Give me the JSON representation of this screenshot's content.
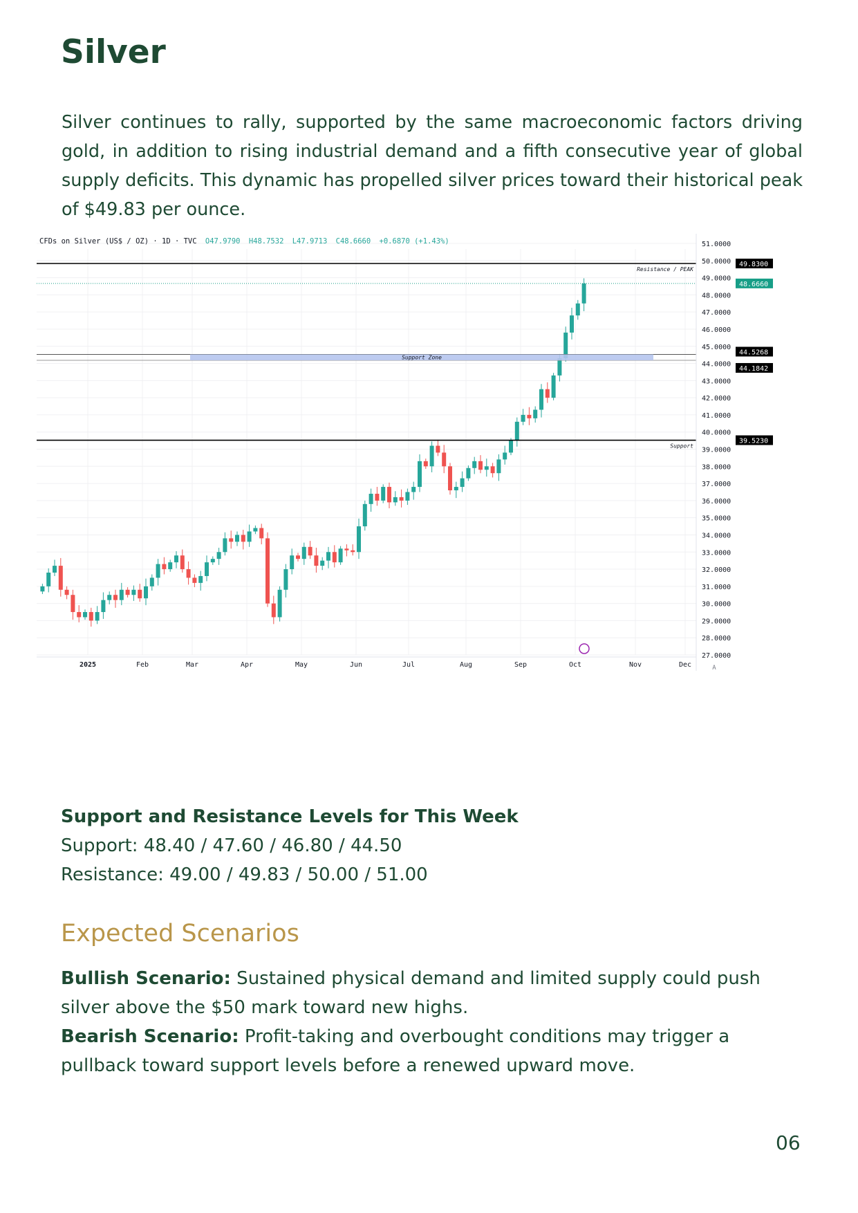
{
  "title": "Silver",
  "intro": "Silver continues to rally, supported by the same macroeconomic factors driving gold, in addition to rising industrial demand and a fifth consecutive year of global supply deficits. This dynamic has propelled silver prices toward their historical peak of $49.83 per ounce.",
  "chart_data": {
    "type": "candlestick",
    "header": {
      "symbol": "CFDs on Silver (US$ / OZ) · 1D · TVC",
      "open": "O47.9790",
      "high": "H48.7532",
      "low": "L47.9713",
      "close": "C48.6660",
      "change": "+0.6870 (+1.43%)"
    },
    "ylim": [
      27,
      51
    ],
    "y_ticks": [
      "51.0000",
      "50.0000",
      "49.0000",
      "48.0000",
      "47.0000",
      "46.0000",
      "45.0000",
      "44.0000",
      "43.0000",
      "42.0000",
      "41.0000",
      "40.0000",
      "39.0000",
      "38.0000",
      "37.0000",
      "36.0000",
      "35.0000",
      "34.0000",
      "33.0000",
      "32.0000",
      "31.0000",
      "30.0000",
      "29.0000",
      "28.0000",
      "27.0000"
    ],
    "x_ticks": [
      "2025",
      "Feb",
      "Mar",
      "Apr",
      "May",
      "Jun",
      "Jul",
      "Aug",
      "Sep",
      "Oct",
      "Nov",
      "Dec"
    ],
    "closes": [
      31.0,
      31.8,
      32.2,
      30.8,
      30.5,
      29.5,
      29.2,
      29.5,
      29.0,
      29.5,
      30.2,
      30.5,
      30.2,
      30.8,
      30.5,
      30.8,
      30.3,
      31.0,
      31.5,
      32.3,
      32.0,
      32.4,
      32.8,
      32.0,
      31.5,
      31.2,
      31.6,
      32.4,
      32.6,
      33.0,
      33.8,
      33.6,
      34.0,
      33.6,
      34.2,
      34.4,
      33.8,
      30.0,
      29.2,
      30.8,
      32.0,
      32.8,
      32.6,
      33.3,
      32.8,
      32.2,
      32.5,
      33.0,
      32.4,
      33.2,
      33.1,
      33.0,
      34.5,
      35.8,
      36.4,
      36.0,
      36.8,
      35.9,
      36.2,
      36.0,
      36.5,
      36.8,
      38.3,
      38.0,
      39.2,
      38.8,
      38.0,
      36.6,
      36.8,
      37.3,
      37.9,
      38.3,
      37.8,
      38.0,
      37.6,
      38.4,
      38.8,
      39.5,
      40.6,
      41.0,
      40.8,
      41.3,
      42.5,
      42.0,
      43.3,
      44.3,
      45.8,
      46.8,
      47.5,
      48.666
    ],
    "lines": [
      {
        "label": "Resistance / PEAK",
        "value": 49.83,
        "tag": "49.8300"
      },
      {
        "label": "Support",
        "value": 39.523,
        "tag": "39.5230"
      }
    ],
    "zone": {
      "label": "Support Zone",
      "top": 44.5268,
      "bottom": 44.1842,
      "tag_top": "44.5268",
      "tag_bottom": "44.1842"
    },
    "last_price": {
      "value": 48.666,
      "tag": "48.6660"
    },
    "colors": {
      "up": "#26a69a",
      "down": "#ef5350",
      "zone": "#b6c5ee",
      "last": "#179e87"
    },
    "scale_button": "A"
  },
  "levels": {
    "heading": "Support and Resistance Levels for This Week",
    "support": "Support: 48.40 / 47.60 / 46.80 / 44.50",
    "resistance": "Resistance: 49.00 / 49.83 / 50.00 / 51.00"
  },
  "scenarios": {
    "heading": "Expected Scenarios",
    "bullish_label": "Bullish Scenario:",
    "bullish_text": " Sustained physical demand and limited supply could push silver above the $50 mark toward new highs.",
    "bearish_label": "Bearish Scenario:",
    "bearish_text": " Profit-taking and overbought conditions may trigger a pullback toward support levels before a renewed upward move."
  },
  "page_number": "06"
}
